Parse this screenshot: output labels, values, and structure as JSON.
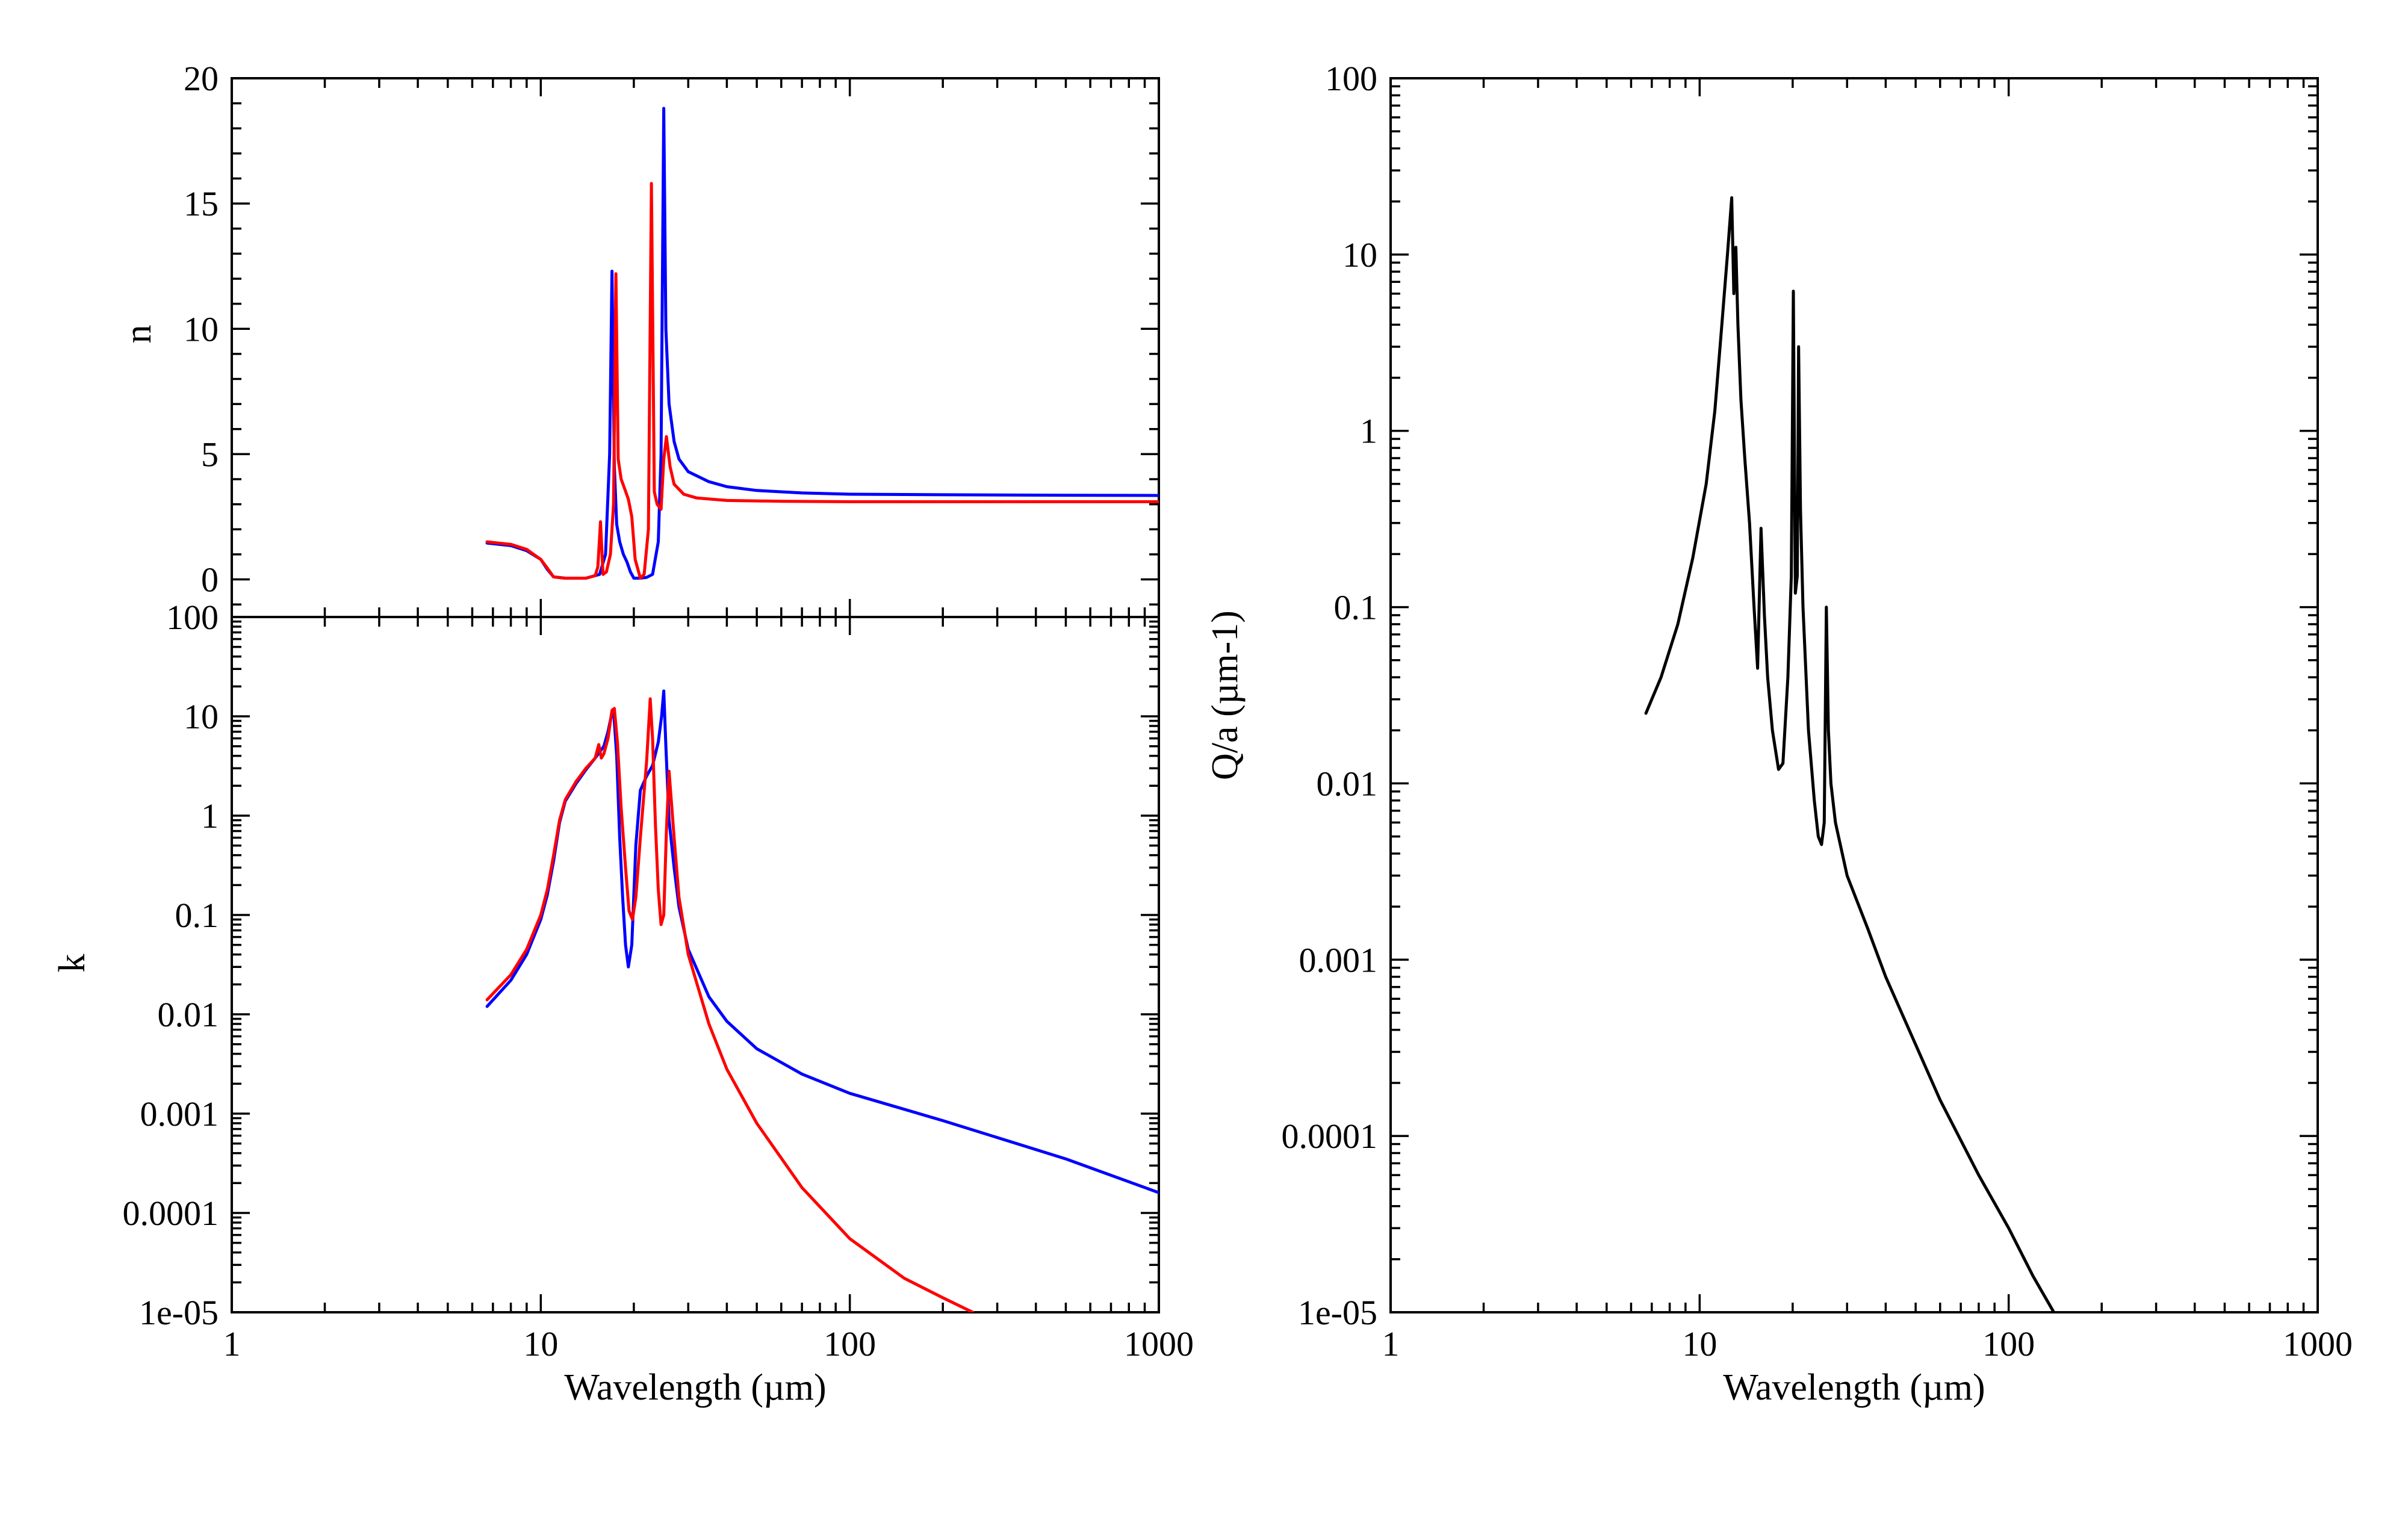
{
  "chart_data": [
    {
      "id": "n-panel",
      "type": "line",
      "xlabel": "Wavelength (µm)",
      "ylabel": "n",
      "xscale": "log",
      "yscale": "linear",
      "xlim": [
        1,
        1000
      ],
      "ylim": [
        -1.5,
        20
      ],
      "x_ticks": [],
      "y_ticks": [
        "0",
        "5",
        "10",
        "15",
        "20"
      ],
      "grid": false,
      "series": [
        {
          "color": "#0000ff",
          "x": [
            6.7,
            8,
            9,
            10,
            10.5,
            11,
            12,
            14,
            15.5,
            16.2,
            16.7,
            17.0,
            17.3,
            17.6,
            18.0,
            18.5,
            19,
            19.5,
            20,
            21,
            22,
            23,
            24,
            24.5,
            25.0,
            25.4,
            26,
            27,
            28,
            30,
            35,
            40,
            50,
            70,
            100,
            200,
            500,
            1000
          ],
          "y": [
            1.45,
            1.35,
            1.15,
            0.8,
            0.4,
            0.1,
            0.05,
            0.05,
            0.2,
            1.0,
            5.0,
            12.3,
            4.5,
            2.2,
            1.5,
            1.0,
            0.7,
            0.3,
            0.05,
            0.05,
            0.08,
            0.2,
            1.5,
            5.0,
            18.8,
            10.0,
            7.0,
            5.5,
            4.8,
            4.3,
            3.9,
            3.7,
            3.55,
            3.45,
            3.4,
            3.38,
            3.36,
            3.35
          ]
        },
        {
          "color": "#ff0000",
          "x": [
            6.7,
            8,
            9,
            10,
            10.5,
            11,
            12,
            14,
            15,
            15.3,
            15.6,
            15.9,
            16.3,
            16.8,
            17.2,
            17.5,
            17.8,
            18.2,
            18.7,
            19.2,
            19.7,
            20.2,
            21,
            21.6,
            22.3,
            22.8,
            23.3,
            23.8,
            24.5,
            25.0,
            25.5,
            26.2,
            27,
            29,
            32,
            40,
            60,
            100,
            300,
            1000
          ],
          "y": [
            1.5,
            1.4,
            1.2,
            0.8,
            0.45,
            0.1,
            0.05,
            0.05,
            0.15,
            0.5,
            2.3,
            0.2,
            0.3,
            1.0,
            3.0,
            12.2,
            4.8,
            4.0,
            3.6,
            3.2,
            2.5,
            0.8,
            0.05,
            0.2,
            2.0,
            15.8,
            3.5,
            3.0,
            2.8,
            4.8,
            5.7,
            4.5,
            3.8,
            3.4,
            3.25,
            3.15,
            3.12,
            3.1,
            3.1,
            3.1
          ]
        }
      ]
    },
    {
      "id": "k-panel",
      "type": "line",
      "xlabel": "Wavelength (µm)",
      "ylabel": "k",
      "xscale": "log",
      "yscale": "log",
      "xlim": [
        1,
        1000
      ],
      "ylim": [
        1e-05,
        100
      ],
      "x_ticks": [
        "1",
        "10",
        "100",
        "1000"
      ],
      "y_ticks": [
        "1e-05",
        "0.0001",
        "0.001",
        "0.01",
        "0.1",
        "1",
        "10",
        "100"
      ],
      "grid": false,
      "series": [
        {
          "color": "#0000ff",
          "x": [
            6.7,
            8,
            9,
            10,
            10.5,
            11,
            11.5,
            12,
            13,
            14,
            15,
            16,
            16.5,
            16.9,
            17.2,
            17.6,
            18.0,
            18.4,
            18.8,
            19.2,
            19.7,
            20.3,
            21,
            22,
            23,
            24,
            24.6,
            25.0,
            25.4,
            26,
            27,
            28,
            30,
            35,
            40,
            50,
            70,
            100,
            200,
            500,
            1000
          ],
          "y": [
            0.012,
            0.022,
            0.04,
            0.09,
            0.16,
            0.35,
            0.85,
            1.4,
            2.1,
            2.9,
            3.8,
            5.0,
            7.0,
            10.0,
            11.5,
            4.0,
            0.6,
            0.15,
            0.05,
            0.03,
            0.05,
            0.5,
            1.8,
            2.5,
            3.2,
            5.5,
            10.0,
            18.0,
            5.0,
            0.9,
            0.3,
            0.12,
            0.045,
            0.015,
            0.0085,
            0.0045,
            0.0025,
            0.0016,
            0.00085,
            0.00035,
            0.00016
          ]
        },
        {
          "color": "#ff0000",
          "x": [
            6.7,
            8,
            9,
            10,
            10.5,
            11,
            11.5,
            12,
            13,
            14,
            15,
            15.4,
            15.7,
            16.0,
            16.5,
            17.0,
            17.3,
            17.7,
            18.2,
            18.8,
            19.3,
            19.8,
            20.3,
            21,
            22,
            22.6,
            23.0,
            23.5,
            24,
            24.5,
            25.0,
            25.5,
            26,
            27,
            28,
            30,
            35,
            40,
            50,
            70,
            100,
            150,
            200,
            250
          ],
          "y": [
            0.014,
            0.025,
            0.045,
            0.1,
            0.18,
            0.4,
            0.9,
            1.45,
            2.2,
            3.0,
            3.8,
            5.2,
            3.8,
            4.2,
            6.0,
            11.5,
            12.0,
            5.5,
            1.2,
            0.3,
            0.11,
            0.09,
            0.15,
            0.6,
            3.5,
            15.0,
            6.0,
            0.8,
            0.18,
            0.08,
            0.1,
            0.7,
            2.8,
            0.6,
            0.15,
            0.04,
            0.008,
            0.0028,
            0.0008,
            0.00018,
            5.5e-05,
            2.2e-05,
            1.4e-05,
            1e-05
          ]
        }
      ]
    },
    {
      "id": "qa-panel",
      "type": "line",
      "xlabel": "Wavelength (µm)",
      "ylabel": "Q/a (µm-1)",
      "xscale": "log",
      "yscale": "log",
      "xlim": [
        1,
        1000
      ],
      "ylim": [
        1e-05,
        100
      ],
      "x_ticks": [
        "1",
        "10",
        "100",
        "1000"
      ],
      "y_ticks": [
        "1e-05",
        "0.0001",
        "0.001",
        "0.01",
        "0.1",
        "1",
        "10",
        "100"
      ],
      "grid": false,
      "series": [
        {
          "color": "#000000",
          "x": [
            6.7,
            7.5,
            8.5,
            9.5,
            10.5,
            11.2,
            11.8,
            12.3,
            12.7,
            12.9,
            13.1,
            13.3,
            13.6,
            14.0,
            14.5,
            15.0,
            15.4,
            15.8,
            16.2,
            16.6,
            17.2,
            18.0,
            18.6,
            19.3,
            19.8,
            20.1,
            20.4,
            20.7,
            20.9,
            21.2,
            21.6,
            22.5,
            23.5,
            24.2,
            24.8,
            25.3,
            25.7,
            26.1,
            26.6,
            27.5,
            30,
            35,
            40,
            50,
            60,
            80,
            100,
            120,
            140
          ],
          "y": [
            0.025,
            0.04,
            0.08,
            0.19,
            0.5,
            1.3,
            4.0,
            10.0,
            21.0,
            6.0,
            11.0,
            4.0,
            1.5,
            0.7,
            0.3,
            0.1,
            0.045,
            0.28,
            0.09,
            0.04,
            0.02,
            0.012,
            0.013,
            0.04,
            0.15,
            6.2,
            0.12,
            0.15,
            3.0,
            0.35,
            0.1,
            0.02,
            0.008,
            0.005,
            0.0045,
            0.006,
            0.1,
            0.02,
            0.01,
            0.006,
            0.003,
            0.0015,
            0.0008,
            0.00033,
            0.00016,
            6e-05,
            3e-05,
            1.6e-05,
            1e-05
          ]
        }
      ]
    }
  ]
}
